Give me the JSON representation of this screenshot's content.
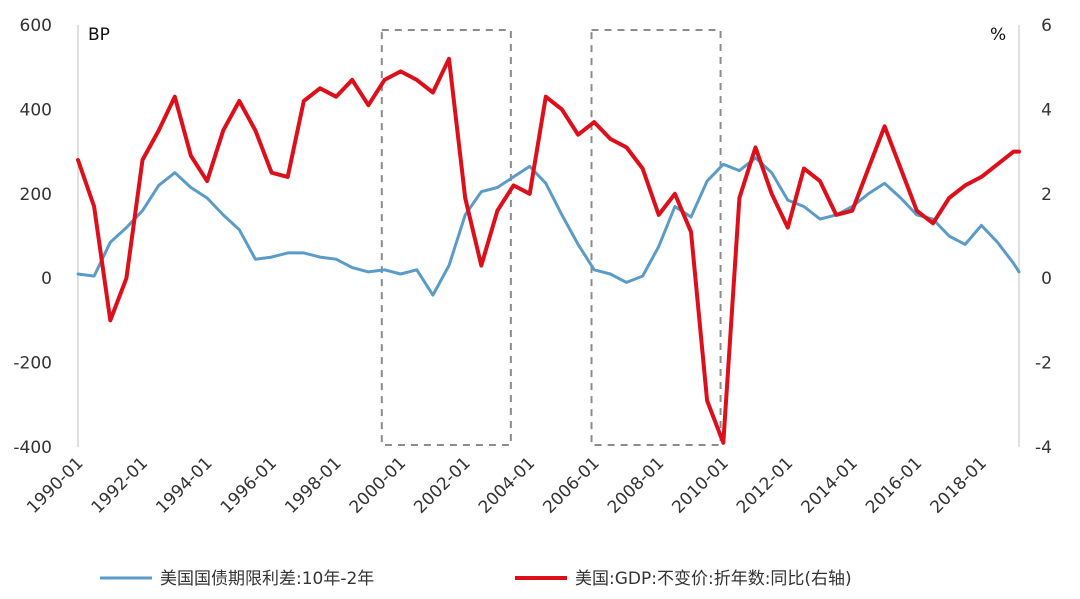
{
  "chart_data": {
    "type": "line",
    "left_unit": "BP",
    "right_unit": "%",
    "left_ylim": [
      -400,
      600
    ],
    "left_ticks": [
      "600",
      "400",
      "200",
      "0",
      "-200",
      "-400"
    ],
    "right_ylim": [
      -4,
      6
    ],
    "right_ticks": [
      "6",
      "4",
      "2",
      "0",
      "-2",
      "-4"
    ],
    "x_tick_labels": [
      "1990-01",
      "1992-01",
      "1994-01",
      "1996-01",
      "1998-01",
      "2000-01",
      "2002-01",
      "2004-01",
      "2006-01",
      "2008-01",
      "2010-01",
      "2012-01",
      "2014-01",
      "2016-01",
      "2018-01"
    ],
    "x_range": [
      "1990-01",
      "2019-03"
    ],
    "grid": false,
    "legend_position": "bottom",
    "highlight_boxes": [
      {
        "from": "1999-06",
        "to": "2003-06"
      },
      {
        "from": "2005-12",
        "to": "2009-12"
      }
    ],
    "series": [
      {
        "name": "美国国债期限利差:10年-2年",
        "axis": "left",
        "color": "#5b9bc8",
        "x": [
          "1990-01",
          "1990-07",
          "1991-01",
          "1991-07",
          "1992-01",
          "1992-07",
          "1993-01",
          "1993-07",
          "1994-01",
          "1994-07",
          "1995-01",
          "1995-07",
          "1996-01",
          "1996-07",
          "1997-01",
          "1997-07",
          "1998-01",
          "1998-07",
          "1999-01",
          "1999-07",
          "2000-01",
          "2000-07",
          "2001-01",
          "2001-07",
          "2002-01",
          "2002-07",
          "2003-01",
          "2003-07",
          "2004-01",
          "2004-07",
          "2005-01",
          "2005-07",
          "2006-01",
          "2006-07",
          "2007-01",
          "2007-07",
          "2008-01",
          "2008-07",
          "2009-01",
          "2009-07",
          "2010-01",
          "2010-07",
          "2011-01",
          "2011-07",
          "2012-01",
          "2012-07",
          "2013-01",
          "2013-07",
          "2014-01",
          "2014-07",
          "2015-01",
          "2015-07",
          "2016-01",
          "2016-07",
          "2017-01",
          "2017-07",
          "2018-01",
          "2018-07",
          "2019-01",
          "2019-03"
        ],
        "values": [
          10,
          5,
          85,
          120,
          160,
          220,
          250,
          215,
          190,
          150,
          115,
          45,
          50,
          60,
          60,
          50,
          45,
          25,
          15,
          20,
          10,
          20,
          -40,
          30,
          150,
          205,
          215,
          240,
          265,
          225,
          150,
          80,
          20,
          10,
          -10,
          5,
          75,
          170,
          145,
          230,
          270,
          255,
          285,
          250,
          185,
          170,
          140,
          150,
          170,
          200,
          225,
          190,
          150,
          140,
          100,
          80,
          125,
          85,
          35,
          15
        ]
      },
      {
        "name": "美国:GDP:不变价:折年数:同比(右轴)",
        "axis": "right",
        "color": "#dd0f1b",
        "x": [
          "1990-01",
          "1990-07",
          "1991-01",
          "1991-07",
          "1992-01",
          "1992-07",
          "1993-01",
          "1993-07",
          "1994-01",
          "1994-07",
          "1995-01",
          "1995-07",
          "1996-01",
          "1996-07",
          "1997-01",
          "1997-07",
          "1998-01",
          "1998-07",
          "1999-01",
          "1999-07",
          "2000-01",
          "2000-07",
          "2001-01",
          "2001-07",
          "2002-01",
          "2002-07",
          "2003-01",
          "2003-07",
          "2004-01",
          "2004-07",
          "2005-01",
          "2005-07",
          "2006-01",
          "2006-07",
          "2007-01",
          "2007-07",
          "2008-01",
          "2008-07",
          "2009-01",
          "2009-07",
          "2010-01",
          "2010-07",
          "2011-01",
          "2011-07",
          "2012-01",
          "2012-07",
          "2013-01",
          "2013-07",
          "2014-01",
          "2014-07",
          "2015-01",
          "2015-07",
          "2016-01",
          "2016-07",
          "2017-01",
          "2017-07",
          "2018-01",
          "2018-07",
          "2019-01",
          "2019-03"
        ],
        "values": [
          2.8,
          1.7,
          -1.0,
          0.0,
          2.8,
          3.5,
          4.3,
          2.9,
          2.3,
          3.5,
          4.2,
          3.5,
          2.5,
          2.4,
          4.2,
          4.5,
          4.3,
          4.7,
          4.1,
          4.7,
          4.9,
          4.7,
          4.4,
          5.2,
          1.9,
          0.3,
          1.6,
          2.2,
          2.0,
          4.3,
          4.0,
          3.4,
          3.7,
          3.3,
          3.1,
          2.6,
          1.5,
          2.0,
          1.1,
          -2.9,
          -3.9,
          1.9,
          3.1,
          2.0,
          1.2,
          2.6,
          2.3,
          1.5,
          1.6,
          2.6,
          3.6,
          2.6,
          1.6,
          1.3,
          1.9,
          2.2,
          2.4,
          2.7,
          3.0,
          3.0
        ]
      }
    ]
  }
}
